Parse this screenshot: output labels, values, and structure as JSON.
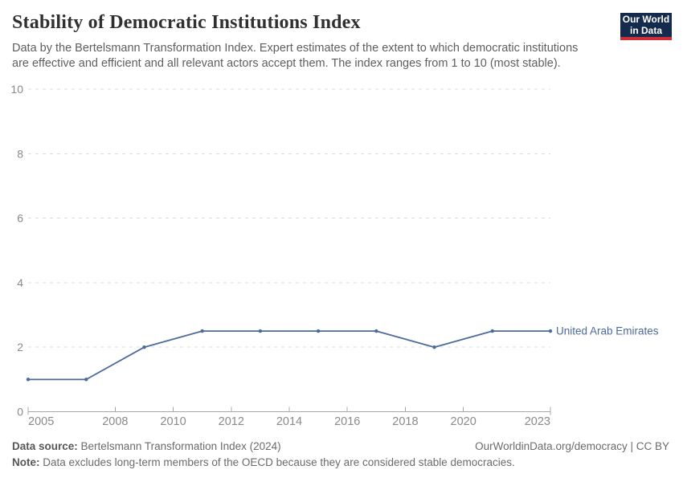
{
  "header": {
    "title": "Stability of Democratic Institutions Index",
    "subtitle": "Data by the Bertelsmann Transformation Index. Expert estimates of the extent to which democratic institutions are effective and efficient and all relevant actors accept them. The index ranges from 1 to 10 (most stable).",
    "logo": {
      "line1": "Our World",
      "line2": "in Data"
    }
  },
  "chart_data": {
    "type": "line",
    "title": "Stability of Democratic Institutions Index",
    "x": [
      2005,
      2007,
      2009,
      2011,
      2013,
      2015,
      2017,
      2019,
      2021,
      2023
    ],
    "series": [
      {
        "name": "United Arab Emirates",
        "color": "#4c6a9c",
        "values": [
          1,
          1,
          2,
          2.5,
          2.5,
          2.5,
          2.5,
          2,
          2.5,
          2.5
        ]
      }
    ],
    "xlim": [
      2005,
      2023
    ],
    "ylim": [
      0,
      10
    ],
    "x_ticks": [
      2005,
      2008,
      2010,
      2012,
      2014,
      2016,
      2018,
      2020,
      2023
    ],
    "y_ticks": [
      0,
      2,
      4,
      6,
      8,
      10
    ],
    "grid": "horizontal-dashed",
    "legend_position": "end-of-line",
    "theme": {
      "line": "#4c6a9c",
      "grid": "#dcdcdc",
      "axis": "#a8a8a8",
      "tick_label": "#8a8a8a"
    }
  },
  "footer": {
    "source_label": "Data source:",
    "source_text": "Bertelsmann Transformation Index (2024)",
    "rights": "OurWorldinData.org/democracy | CC BY",
    "note_label": "Note:",
    "note_text": "Data excludes long-term members of the OECD because they are considered stable democracies."
  },
  "brand": {
    "navy": "#142b4d",
    "red": "#cc2f38"
  }
}
